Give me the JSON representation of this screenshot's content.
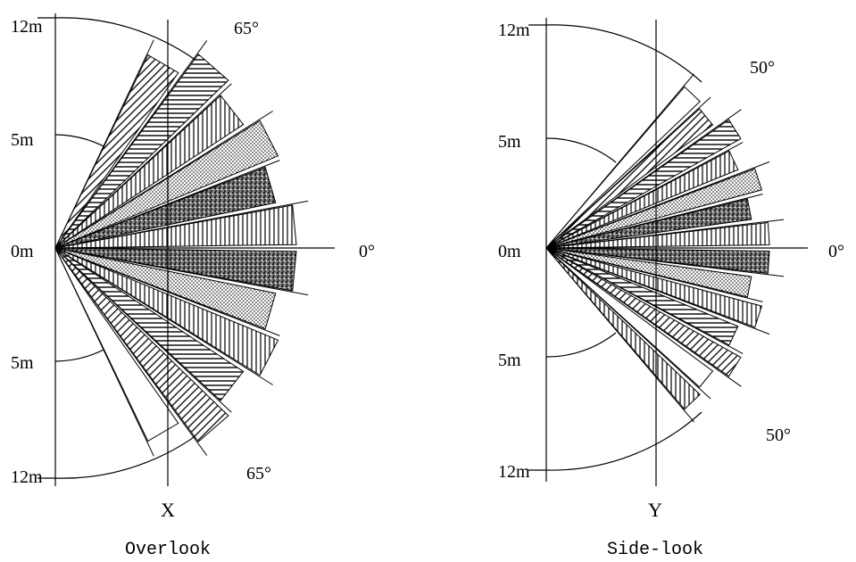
{
  "diagrams": [
    {
      "id": "overlook",
      "labels": {
        "top": "12m",
        "upper_mid": "5m",
        "origin": "0m",
        "lower_mid": "5m",
        "bottom": "12m",
        "angle_upper": "65°",
        "angle_lower": "65°",
        "angle_zero": "0°",
        "axis": "X",
        "caption": "Overlook"
      },
      "half_angle_deg": 65,
      "zones_per_side": 6,
      "inner_radius_m": 5,
      "outer_radius_m": 12
    },
    {
      "id": "side-look",
      "labels": {
        "top": "12m",
        "upper_mid": "5m",
        "origin": "0m",
        "lower_mid": "5m",
        "bottom": "12m",
        "angle_upper": "50°",
        "angle_lower": "50°",
        "angle_zero": "0°",
        "axis": "Y",
        "caption": "Side-look"
      },
      "half_angle_deg": 50,
      "zones_per_side": 7,
      "inner_radius_m": 5,
      "outer_radius_m": 12
    }
  ],
  "colors": {
    "line": "#000000",
    "background": "#ffffff"
  }
}
